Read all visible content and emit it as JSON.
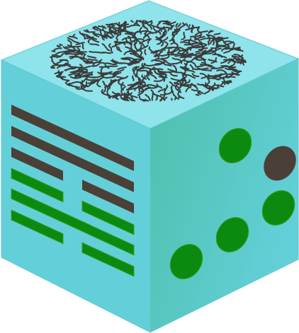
{
  "figure": {
    "colors": {
      "top_face": "#8fe3ea",
      "left_face": "#63d0d9",
      "right_face_start": "#4dbfaa",
      "right_face_end": "#63d0d9",
      "edge": "#5cc8d2",
      "dark_bar": "#4a4038",
      "green_bar": "#0c8a10",
      "green_bar_stroke": "#3c9d2a",
      "maze_line": "#3b3b3b"
    },
    "top_face": {
      "pattern": "branching-maze"
    },
    "left_face": {
      "hexagram": [
        {
          "kind": "solid",
          "color": "dark"
        },
        {
          "kind": "solid",
          "color": "dark"
        },
        {
          "kind": "broken",
          "color": "dark"
        },
        {
          "kind": "broken",
          "color": "green"
        },
        {
          "kind": "solid",
          "color": "green"
        },
        {
          "kind": "broken",
          "color": "green"
        }
      ]
    },
    "right_face": {
      "pips": [
        {
          "color": "green"
        },
        {
          "color": "dark"
        },
        {
          "color": "green"
        },
        {
          "color": "green"
        },
        {
          "color": "green"
        }
      ]
    }
  }
}
